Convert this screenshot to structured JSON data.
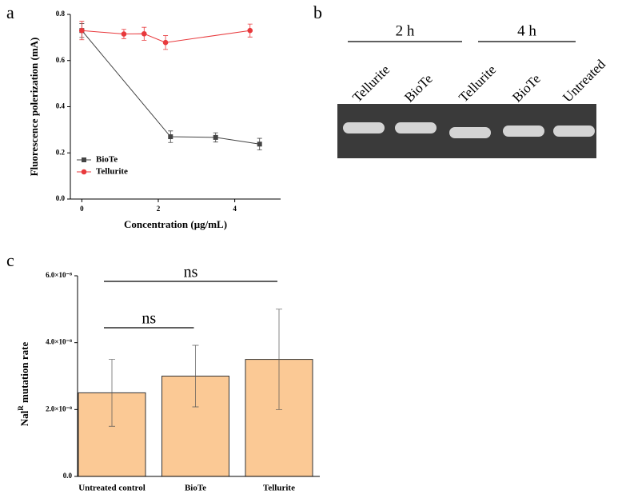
{
  "chart_data": [
    {
      "type": "line",
      "panel": "a",
      "x_label": "Concentration (μg/mL)",
      "y_label": "Fluorescence polerization (mA)",
      "xlim": [
        -0.3,
        5.2
      ],
      "xticks": [
        0,
        2,
        4
      ],
      "ylim": [
        0,
        0.8
      ],
      "yticks": [
        {
          "value": 0,
          "label": "0.0"
        },
        {
          "value": 0.2,
          "label": "0.2"
        },
        {
          "value": 0.4,
          "label": "0.4"
        },
        {
          "value": 0.6,
          "label": "0.6"
        },
        {
          "value": 0.8,
          "label": "0.8"
        }
      ],
      "legend": "lower left",
      "series": [
        {
          "name": "BioTe",
          "color": "#444444",
          "marker": "square",
          "x": [
            0,
            2.32,
            3.5,
            4.65
          ],
          "values": [
            0.73,
            0.27,
            0.267,
            0.238
          ],
          "errors": [
            0.03,
            0.025,
            0.02,
            0.025
          ]
        },
        {
          "name": "Tellurite",
          "color": "#e8393c",
          "marker": "circle",
          "x": [
            0,
            1.1,
            1.63,
            2.19,
            4.4
          ],
          "values": [
            0.73,
            0.715,
            0.716,
            0.678,
            0.73
          ],
          "errors": [
            0.04,
            0.02,
            0.028,
            0.03,
            0.028
          ]
        }
      ]
    },
    {
      "type": "gel",
      "panel": "b",
      "groups": [
        "2 h",
        "4 h"
      ],
      "lanes": [
        "Tellurite",
        "BioTe",
        "Tellurite",
        "BioTe",
        "Untreated"
      ]
    },
    {
      "type": "bar",
      "panel": "c",
      "y_label": {
        "base": "Nal",
        "sup": "R",
        "rest": " mutation rate"
      },
      "categories": [
        "Untreated control",
        "BioTe",
        "Tellurite"
      ],
      "values": [
        2.5e-08,
        3e-08,
        3.5e-08
      ],
      "errors": [
        1e-08,
        9.2e-09,
        1.5e-08
      ],
      "color": "#fbc995",
      "ylim": [
        0,
        6e-08
      ],
      "yticks": [
        {
          "value": 0,
          "label": "0.0"
        },
        {
          "value": 2e-08,
          "label": "2.0×10⁻⁸"
        },
        {
          "value": 4e-08,
          "label": "4.0×10⁻⁸"
        },
        {
          "value": 6e-08,
          "label": "6.0×10⁻⁸"
        }
      ],
      "annotations": [
        {
          "text": "ns",
          "between": [
            0,
            2
          ]
        },
        {
          "text": "ns",
          "between": [
            0,
            1
          ]
        }
      ]
    }
  ]
}
